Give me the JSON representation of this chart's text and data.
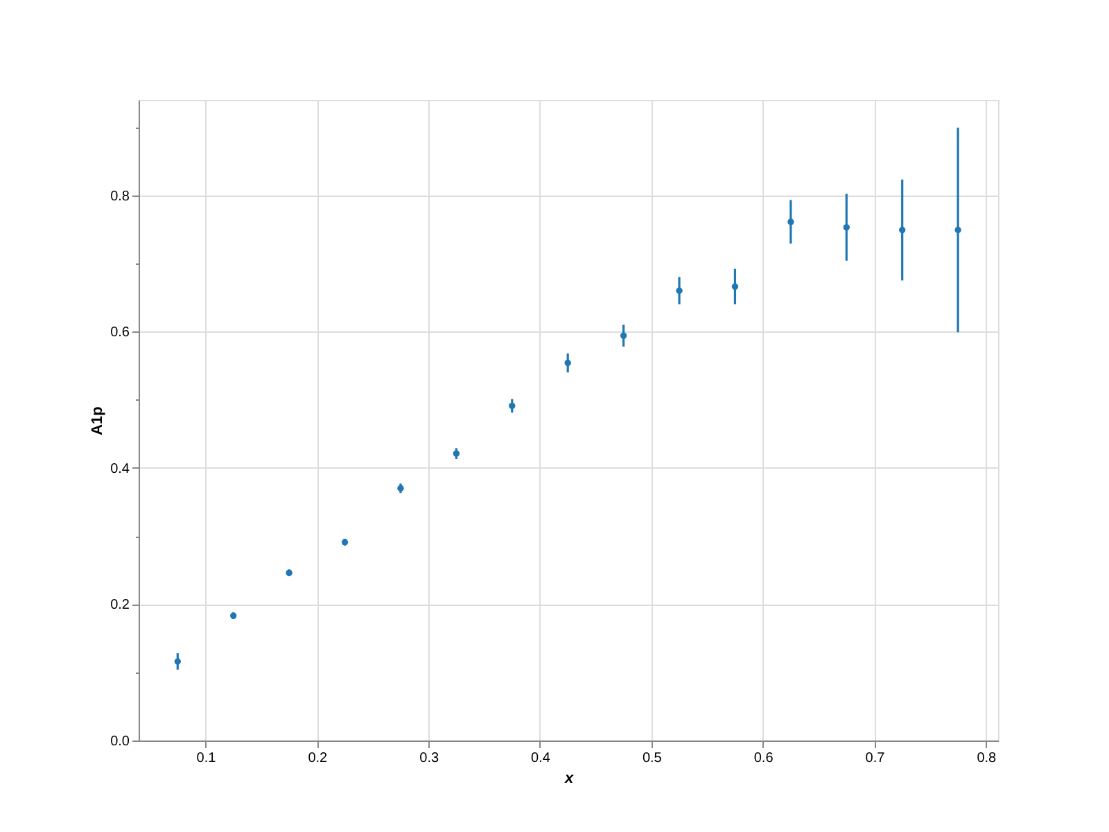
{
  "chart_data": {
    "type": "scatter",
    "xlabel": "x",
    "ylabel": "A1p",
    "x": [
      0.075,
      0.125,
      0.175,
      0.225,
      0.275,
      0.325,
      0.375,
      0.425,
      0.475,
      0.525,
      0.575,
      0.625,
      0.675,
      0.725,
      0.775
    ],
    "series": [
      {
        "color": "#1f77b4",
        "values": [
          0.116,
          0.183,
          0.246,
          0.291,
          0.37,
          0.421,
          0.491,
          0.554,
          0.594,
          0.66,
          0.666,
          0.761,
          0.753,
          0.749,
          0.749
        ],
        "errors": [
          0.012,
          0.005,
          0.005,
          0.005,
          0.007,
          0.008,
          0.01,
          0.014,
          0.016,
          0.02,
          0.026,
          0.032,
          0.049,
          0.074,
          0.15
        ]
      }
    ],
    "xlim": [
      0.04,
      0.811
    ],
    "ylim": [
      0,
      0.94
    ],
    "xticks": [
      0.1,
      0.2,
      0.3,
      0.4,
      0.5,
      0.6,
      0.7,
      0.8
    ],
    "yticks": [
      {
        "value": 0,
        "label": "0.0"
      },
      {
        "value": 0.1,
        "label": null
      },
      0.2,
      {
        "value": 0.3,
        "label": null
      },
      0.4,
      {
        "value": 0.5,
        "label": null
      },
      0.6,
      {
        "value": 0.7,
        "label": null
      },
      0.8,
      {
        "value": 0.9,
        "label": null
      }
    ],
    "grid": true,
    "marker": "circle"
  }
}
